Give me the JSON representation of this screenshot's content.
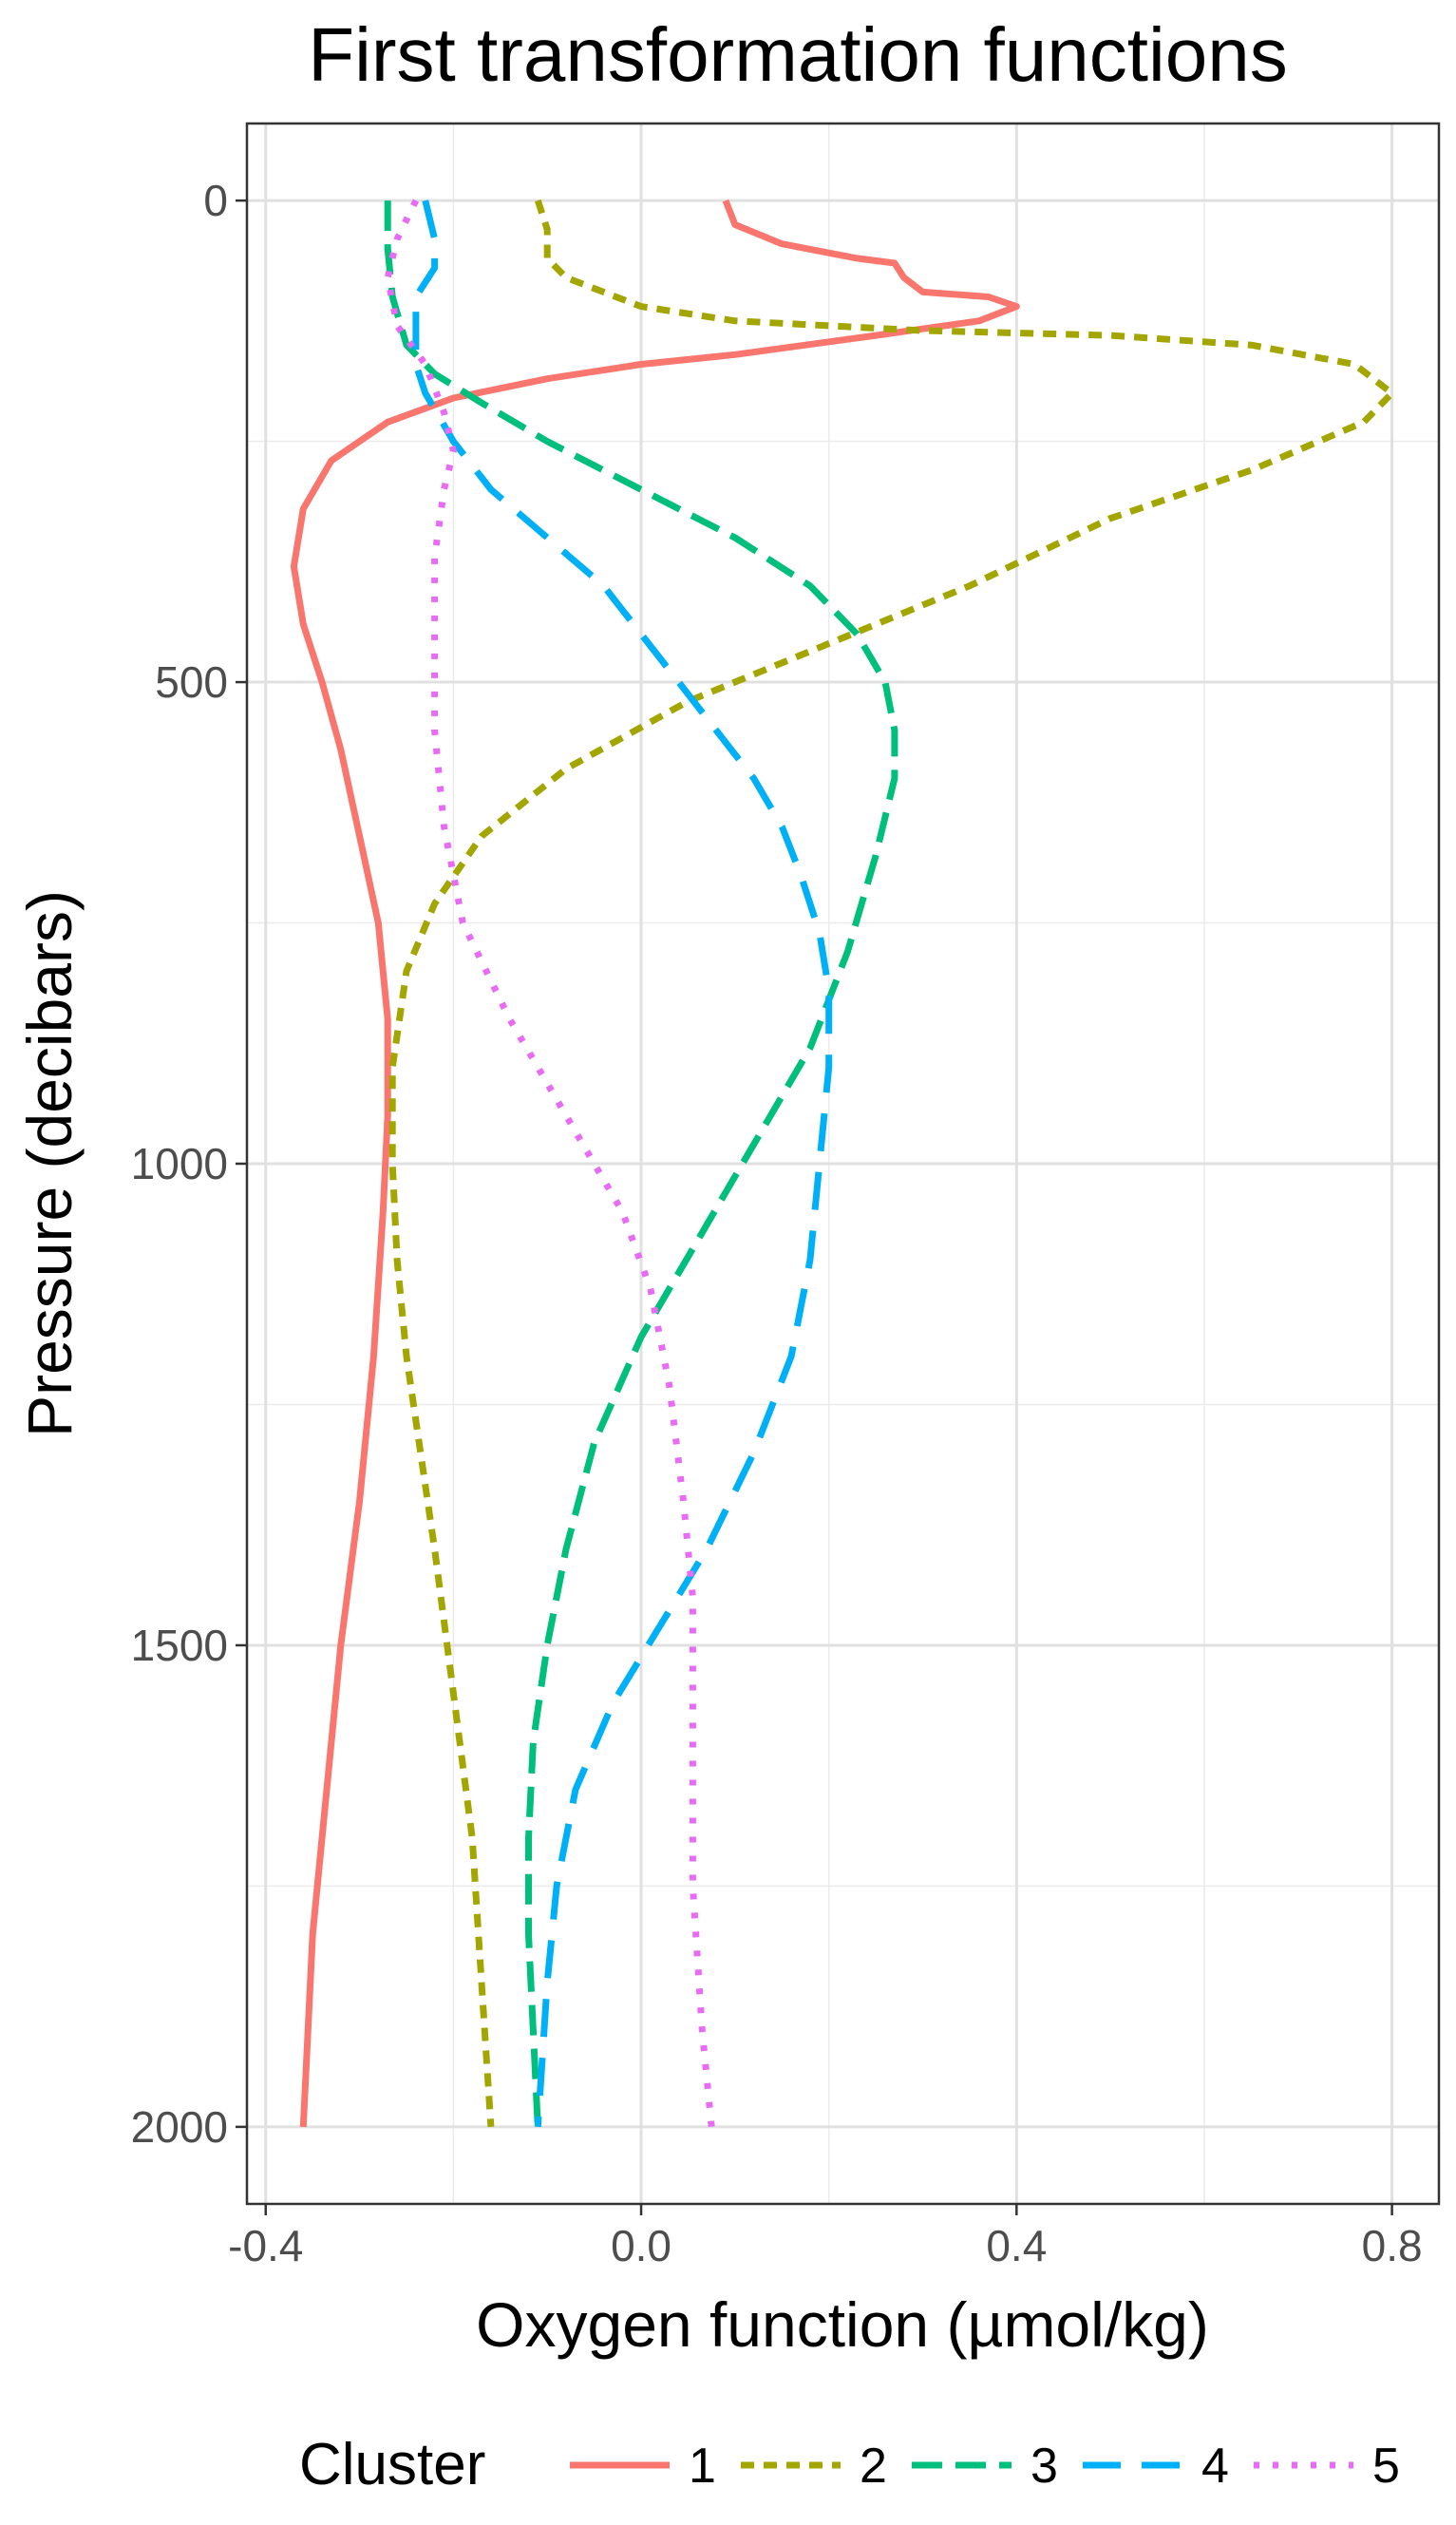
{
  "chart_data": {
    "type": "line",
    "title": "First transformation functions",
    "xlabel": "Oxygen function (µmol/kg)",
    "ylabel": "Pressure (decibars)",
    "xlim": [
      -0.42,
      0.85
    ],
    "ylim": [
      2080,
      -80
    ],
    "y_reversed": true,
    "x_ticks": [
      -0.4,
      0.0,
      0.4,
      0.8
    ],
    "x_tick_labels": [
      "-0.4",
      "0.0",
      "0.4",
      "0.8"
    ],
    "y_ticks": [
      0,
      500,
      1000,
      1500,
      2000
    ],
    "y_tick_labels": [
      "0",
      "500",
      "1000",
      "1500",
      "2000"
    ],
    "grid": true,
    "legend": {
      "title": "Cluster",
      "position": "bottom"
    },
    "series": [
      {
        "name": "1",
        "color": "#F8766D",
        "dash": "solid",
        "points": [
          [
            0.09,
            0
          ],
          [
            0.1,
            25
          ],
          [
            0.15,
            45
          ],
          [
            0.23,
            60
          ],
          [
            0.27,
            65
          ],
          [
            0.28,
            80
          ],
          [
            0.3,
            95
          ],
          [
            0.37,
            100
          ],
          [
            0.4,
            110
          ],
          [
            0.36,
            125
          ],
          [
            0.25,
            140
          ],
          [
            0.1,
            160
          ],
          [
            0.0,
            170
          ],
          [
            -0.1,
            185
          ],
          [
            -0.2,
            205
          ],
          [
            -0.27,
            230
          ],
          [
            -0.33,
            270
          ],
          [
            -0.36,
            320
          ],
          [
            -0.37,
            380
          ],
          [
            -0.36,
            440
          ],
          [
            -0.34,
            500
          ],
          [
            -0.32,
            570
          ],
          [
            -0.3,
            660
          ],
          [
            -0.28,
            750
          ],
          [
            -0.27,
            850
          ],
          [
            -0.27,
            950
          ],
          [
            -0.275,
            1050
          ],
          [
            -0.285,
            1200
          ],
          [
            -0.3,
            1350
          ],
          [
            -0.32,
            1500
          ],
          [
            -0.335,
            1650
          ],
          [
            -0.35,
            1800
          ],
          [
            -0.36,
            2000
          ]
        ]
      },
      {
        "name": "2",
        "color": "#A3A500",
        "dash": "dotted",
        "points": [
          [
            -0.11,
            0
          ],
          [
            -0.1,
            30
          ],
          [
            -0.1,
            60
          ],
          [
            -0.08,
            80
          ],
          [
            0.0,
            110
          ],
          [
            0.1,
            125
          ],
          [
            0.3,
            135
          ],
          [
            0.5,
            140
          ],
          [
            0.65,
            150
          ],
          [
            0.76,
            170
          ],
          [
            0.8,
            200
          ],
          [
            0.77,
            230
          ],
          [
            0.65,
            280
          ],
          [
            0.5,
            330
          ],
          [
            0.35,
            400
          ],
          [
            0.2,
            460
          ],
          [
            0.05,
            520
          ],
          [
            -0.08,
            590
          ],
          [
            -0.17,
            660
          ],
          [
            -0.22,
            730
          ],
          [
            -0.25,
            800
          ],
          [
            -0.265,
            900
          ],
          [
            -0.265,
            1000
          ],
          [
            -0.26,
            1100
          ],
          [
            -0.25,
            1200
          ],
          [
            -0.235,
            1300
          ],
          [
            -0.22,
            1400
          ],
          [
            -0.2,
            1550
          ],
          [
            -0.18,
            1700
          ],
          [
            -0.17,
            1850
          ],
          [
            -0.16,
            2000
          ]
        ]
      },
      {
        "name": "3",
        "color": "#00BF7D",
        "dash": "dashed",
        "points": [
          [
            -0.27,
            0
          ],
          [
            -0.27,
            50
          ],
          [
            -0.265,
            100
          ],
          [
            -0.25,
            150
          ],
          [
            -0.22,
            180
          ],
          [
            -0.17,
            210
          ],
          [
            -0.1,
            250
          ],
          [
            0.0,
            300
          ],
          [
            0.1,
            350
          ],
          [
            0.18,
            400
          ],
          [
            0.23,
            450
          ],
          [
            0.26,
            500
          ],
          [
            0.27,
            550
          ],
          [
            0.27,
            600
          ],
          [
            0.25,
            680
          ],
          [
            0.22,
            780
          ],
          [
            0.18,
            880
          ],
          [
            0.12,
            980
          ],
          [
            0.06,
            1080
          ],
          [
            0.0,
            1180
          ],
          [
            -0.05,
            1290
          ],
          [
            -0.08,
            1400
          ],
          [
            -0.1,
            1500
          ],
          [
            -0.115,
            1600
          ],
          [
            -0.12,
            1700
          ],
          [
            -0.12,
            1800
          ],
          [
            -0.115,
            1900
          ],
          [
            -0.11,
            2000
          ]
        ]
      },
      {
        "name": "4",
        "color": "#00B0F6",
        "dash": "longdash",
        "points": [
          [
            -0.23,
            0
          ],
          [
            -0.22,
            40
          ],
          [
            -0.22,
            70
          ],
          [
            -0.24,
            100
          ],
          [
            -0.24,
            130
          ],
          [
            -0.24,
            170
          ],
          [
            -0.23,
            200
          ],
          [
            -0.2,
            250
          ],
          [
            -0.16,
            300
          ],
          [
            -0.1,
            350
          ],
          [
            -0.04,
            400
          ],
          [
            0.0,
            450
          ],
          [
            0.04,
            500
          ],
          [
            0.08,
            550
          ],
          [
            0.12,
            600
          ],
          [
            0.15,
            650
          ],
          [
            0.17,
            700
          ],
          [
            0.19,
            760
          ],
          [
            0.2,
            820
          ],
          [
            0.2,
            900
          ],
          [
            0.19,
            1000
          ],
          [
            0.18,
            1100
          ],
          [
            0.16,
            1200
          ],
          [
            0.12,
            1300
          ],
          [
            0.07,
            1400
          ],
          [
            0.02,
            1480
          ],
          [
            -0.03,
            1560
          ],
          [
            -0.07,
            1650
          ],
          [
            -0.09,
            1750
          ],
          [
            -0.1,
            1850
          ],
          [
            -0.11,
            2000
          ]
        ]
      },
      {
        "name": "5",
        "color": "#E76BF3",
        "dash": "dot",
        "points": [
          [
            -0.24,
            0
          ],
          [
            -0.26,
            40
          ],
          [
            -0.27,
            80
          ],
          [
            -0.26,
            130
          ],
          [
            -0.23,
            170
          ],
          [
            -0.21,
            220
          ],
          [
            -0.2,
            260
          ],
          [
            -0.21,
            300
          ],
          [
            -0.22,
            370
          ],
          [
            -0.22,
            450
          ],
          [
            -0.22,
            550
          ],
          [
            -0.21,
            650
          ],
          [
            -0.19,
            750
          ],
          [
            -0.14,
            850
          ],
          [
            -0.08,
            950
          ],
          [
            -0.02,
            1050
          ],
          [
            0.01,
            1130
          ],
          [
            0.03,
            1230
          ],
          [
            0.045,
            1350
          ],
          [
            0.055,
            1450
          ],
          [
            0.055,
            1600
          ],
          [
            0.055,
            1750
          ],
          [
            0.065,
            1900
          ],
          [
            0.075,
            2000
          ]
        ]
      }
    ]
  }
}
